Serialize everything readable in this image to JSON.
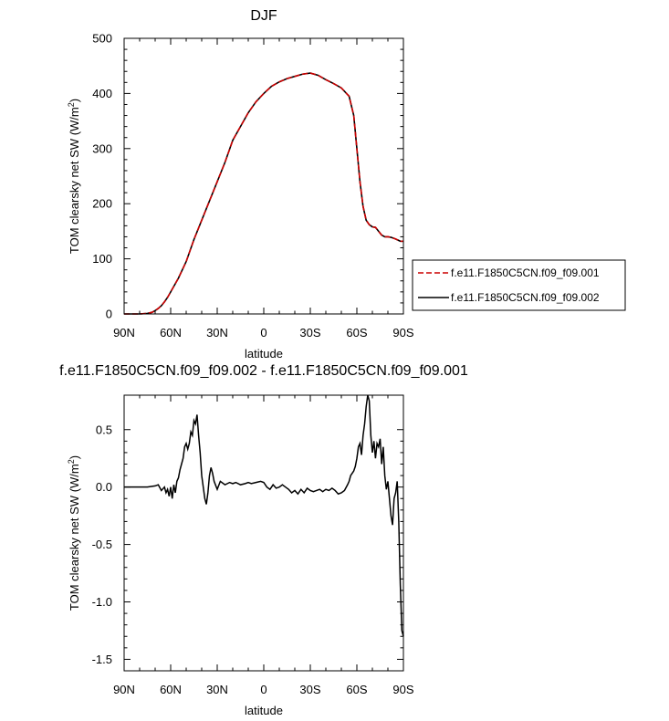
{
  "chart_data": [
    {
      "type": "line",
      "title": "DJF",
      "xlabel": "latitude",
      "ylabel": "TOM clearsky net SW (W/m2)",
      "xlim": [
        -90,
        90
      ],
      "ylim": [
        0,
        500
      ],
      "xticks": [
        -90,
        -60,
        -30,
        0,
        30,
        60,
        90
      ],
      "xticklabels": [
        "90N",
        "60N",
        "30N",
        "0",
        "30S",
        "60S",
        "90S"
      ],
      "yticks": [
        0,
        100,
        200,
        300,
        400,
        500
      ],
      "yticklabels": [
        "0",
        "100",
        "200",
        "300",
        "400",
        "500"
      ],
      "legend": {
        "placement": "right"
      },
      "series": [
        {
          "name": "f.e11.F1850C5CN.f09_f09.001",
          "color": "#cc0000",
          "dash": "dashed",
          "x": [
            -90,
            -80,
            -75,
            -72,
            -70,
            -68,
            -66,
            -64,
            -62,
            -60,
            -55,
            -50,
            -45,
            -40,
            -35,
            -30,
            -25,
            -20,
            -15,
            -10,
            -5,
            0,
            5,
            10,
            15,
            20,
            25,
            30,
            35,
            40,
            45,
            50,
            55,
            58,
            60,
            62,
            64,
            66,
            68,
            70,
            72,
            74,
            76,
            78,
            80,
            82,
            85,
            88,
            90
          ],
          "y": [
            0,
            0,
            1,
            3,
            6,
            10,
            15,
            22,
            30,
            40,
            65,
            95,
            135,
            170,
            205,
            240,
            275,
            315,
            340,
            365,
            385,
            400,
            413,
            421,
            427,
            431,
            435,
            437,
            433,
            425,
            418,
            410,
            395,
            360,
            300,
            240,
            195,
            170,
            162,
            158,
            157,
            150,
            143,
            140,
            140,
            139,
            136,
            132,
            132
          ]
        },
        {
          "name": "f.e11.F1850C5CN.f09_f09.002",
          "color": "#000000",
          "dash": "solid",
          "x": [
            -90,
            -80,
            -75,
            -72,
            -70,
            -68,
            -66,
            -64,
            -62,
            -60,
            -55,
            -50,
            -45,
            -40,
            -35,
            -30,
            -25,
            -20,
            -15,
            -10,
            -5,
            0,
            5,
            10,
            15,
            20,
            25,
            30,
            35,
            40,
            45,
            50,
            55,
            58,
            60,
            62,
            64,
            66,
            68,
            70,
            72,
            74,
            76,
            78,
            80,
            82,
            85,
            88,
            90
          ],
          "y": [
            0,
            0,
            1,
            3,
            6,
            10,
            15,
            22,
            30,
            40,
            65,
            95,
            135,
            170,
            205,
            240,
            275,
            315,
            340,
            365,
            385,
            400,
            413,
            421,
            427,
            431,
            435,
            437,
            433,
            425,
            418,
            410,
            395,
            360,
            300,
            240,
            195,
            170,
            162,
            158,
            157,
            150,
            143,
            140,
            140,
            139,
            136,
            132,
            132
          ]
        }
      ]
    },
    {
      "type": "line",
      "title": "f.e11.F1850C5CN.f09_f09.002 - f.e11.F1850C5CN.f09_f09.001",
      "xlabel": "latitude",
      "ylabel": "TOM clearsky net SW (W/m2)",
      "xlim": [
        -90,
        90
      ],
      "ylim": [
        -1.6,
        0.8
      ],
      "xticks": [
        -90,
        -60,
        -30,
        0,
        30,
        60,
        90
      ],
      "xticklabels": [
        "90N",
        "60N",
        "30N",
        "0",
        "30S",
        "60S",
        "90S"
      ],
      "yticks": [
        0.5,
        0.0,
        -0.5,
        -1.0,
        -1.5
      ],
      "yticklabels": [
        "0.5",
        "0.0",
        "-0.5",
        "-1.0",
        "-1.5"
      ],
      "series": [
        {
          "name": "",
          "color": "#000000",
          "dash": "solid",
          "x": [
            -90,
            -80,
            -75,
            -70,
            -68,
            -66,
            -64,
            -63,
            -62,
            -61,
            -60,
            -59,
            -58,
            -57,
            -56,
            -55,
            -54,
            -53,
            -52,
            -51,
            -50,
            -49,
            -48,
            -47,
            -46,
            -45,
            -44,
            -43,
            -42,
            -41,
            -40,
            -39,
            -38,
            -37,
            -36,
            -35,
            -34,
            -33,
            -32,
            -30,
            -28,
            -25,
            -22,
            -20,
            -18,
            -15,
            -12,
            -10,
            -8,
            -5,
            -2,
            0,
            2,
            4,
            6,
            8,
            10,
            12,
            14,
            16,
            18,
            20,
            22,
            24,
            26,
            28,
            30,
            32,
            34,
            36,
            38,
            40,
            42,
            44,
            46,
            48,
            50,
            52,
            54,
            55,
            56,
            57,
            58,
            59,
            60,
            61,
            62,
            63,
            64,
            65,
            66,
            67,
            68,
            69,
            70,
            71,
            72,
            73,
            74,
            75,
            76,
            77,
            78,
            79,
            80,
            81,
            82,
            83,
            84,
            85,
            86,
            87,
            88,
            89,
            90
          ],
          "y": [
            0,
            0,
            0,
            0.01,
            0.02,
            -0.03,
            0.0,
            -0.05,
            -0.02,
            -0.08,
            0.0,
            -0.1,
            0.02,
            -0.05,
            0.05,
            0.08,
            0.15,
            0.2,
            0.25,
            0.35,
            0.38,
            0.33,
            0.38,
            0.48,
            0.45,
            0.58,
            0.55,
            0.63,
            0.45,
            0.3,
            0.1,
            0.0,
            -0.1,
            -0.15,
            -0.05,
            0.1,
            0.17,
            0.12,
            0.05,
            -0.02,
            0.05,
            0.02,
            0.04,
            0.03,
            0.04,
            0.02,
            0.03,
            0.04,
            0.03,
            0.04,
            0.05,
            0.04,
            0.0,
            -0.02,
            0.02,
            -0.01,
            0.0,
            0.02,
            0.0,
            -0.02,
            -0.05,
            -0.03,
            -0.06,
            -0.02,
            -0.05,
            -0.01,
            -0.03,
            -0.04,
            -0.03,
            -0.02,
            -0.04,
            -0.02,
            -0.03,
            -0.01,
            -0.03,
            -0.06,
            -0.05,
            -0.03,
            0.02,
            0.05,
            0.1,
            0.12,
            0.14,
            0.18,
            0.25,
            0.35,
            0.38,
            0.28,
            0.45,
            0.55,
            0.7,
            0.8,
            0.75,
            0.45,
            0.3,
            0.4,
            0.25,
            0.38,
            0.35,
            0.42,
            0.2,
            0.35,
            0.1,
            -0.02,
            0.05,
            -0.1,
            -0.25,
            -0.33,
            -0.1,
            -0.05,
            0.05,
            -0.3,
            -0.85,
            -1.25,
            -1.3
          ]
        }
      ]
    }
  ]
}
